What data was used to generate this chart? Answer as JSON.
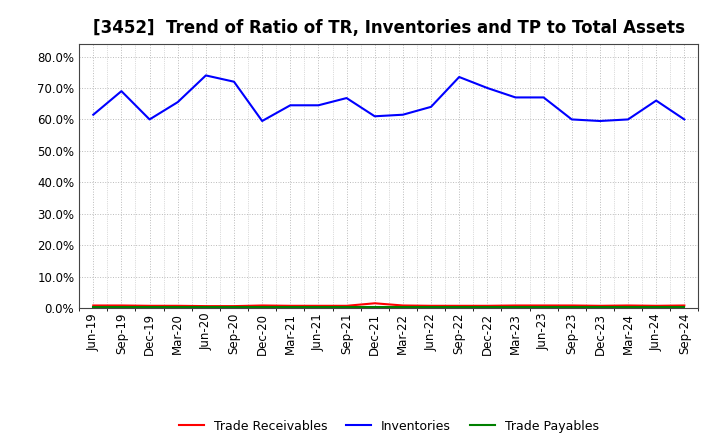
{
  "title": "[3452]  Trend of Ratio of TR, Inventories and TP to Total Assets",
  "x_labels": [
    "Jun-19",
    "Sep-19",
    "Dec-19",
    "Mar-20",
    "Jun-20",
    "Sep-20",
    "Dec-20",
    "Mar-21",
    "Jun-21",
    "Sep-21",
    "Dec-21",
    "Mar-22",
    "Jun-22",
    "Sep-22",
    "Dec-22",
    "Mar-23",
    "Jun-23",
    "Sep-23",
    "Dec-23",
    "Mar-24",
    "Jun-24",
    "Sep-24"
  ],
  "inventories": [
    0.615,
    0.69,
    0.6,
    0.655,
    0.74,
    0.72,
    0.595,
    0.645,
    0.645,
    0.668,
    0.61,
    0.615,
    0.64,
    0.735,
    0.7,
    0.67,
    0.67,
    0.6,
    0.595,
    0.6,
    0.66,
    0.6
  ],
  "trade_receivables": [
    0.008,
    0.008,
    0.007,
    0.007,
    0.006,
    0.006,
    0.008,
    0.007,
    0.007,
    0.007,
    0.015,
    0.008,
    0.007,
    0.007,
    0.007,
    0.008,
    0.008,
    0.008,
    0.007,
    0.008,
    0.007,
    0.008
  ],
  "trade_payables": [
    0.003,
    0.003,
    0.003,
    0.003,
    0.003,
    0.003,
    0.003,
    0.003,
    0.003,
    0.003,
    0.003,
    0.003,
    0.003,
    0.003,
    0.003,
    0.003,
    0.003,
    0.003,
    0.003,
    0.003,
    0.003,
    0.003
  ],
  "inventories_color": "#0000FF",
  "trade_receivables_color": "#FF0000",
  "trade_payables_color": "#008000",
  "ylim": [
    0.0,
    0.84
  ],
  "yticks": [
    0.0,
    0.1,
    0.2,
    0.3,
    0.4,
    0.5,
    0.6,
    0.7,
    0.8
  ],
  "background_color": "#FFFFFF",
  "plot_bg_color": "#FFFFFF",
  "grid_color": "#BBBBBB",
  "legend_labels": [
    "Trade Receivables",
    "Inventories",
    "Trade Payables"
  ],
  "title_fontsize": 12,
  "tick_fontsize": 8.5,
  "legend_fontsize": 9
}
